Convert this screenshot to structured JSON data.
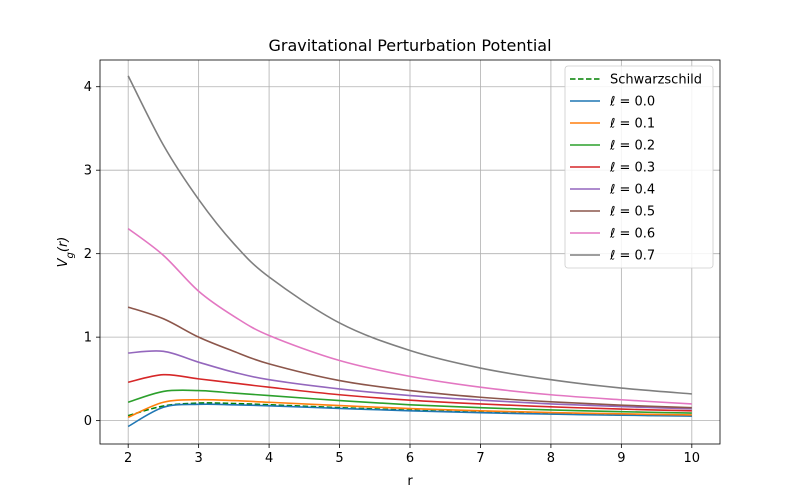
{
  "chart_data": {
    "type": "line",
    "title": "Gravitational Perturbation Potential",
    "xlabel": "r",
    "ylabel": "V_g(r)",
    "xlim": [
      1.6,
      10.4
    ],
    "ylim": [
      -0.28,
      4.32
    ],
    "xticks": [
      2,
      3,
      4,
      5,
      6,
      7,
      8,
      9,
      10
    ],
    "yticks": [
      0,
      1,
      2,
      3,
      4
    ],
    "grid": true,
    "legend_position": "top-right",
    "x": [
      2,
      2.5,
      3,
      3.5,
      4,
      5,
      6,
      7,
      8,
      9,
      10
    ],
    "series": [
      {
        "name": "Schwarzschild",
        "color": "#008000",
        "style": "dashed",
        "values": [
          0.06,
          0.175,
          0.21,
          0.205,
          0.19,
          0.155,
          0.125,
          0.1,
          0.082,
          0.068,
          0.058
        ]
      },
      {
        "name": "ℓ = 0.0",
        "color": "#1f77b4",
        "style": "solid",
        "values": [
          -0.07,
          0.16,
          0.195,
          0.19,
          0.178,
          0.146,
          0.118,
          0.095,
          0.078,
          0.065,
          0.055
        ]
      },
      {
        "name": "ℓ = 0.1",
        "color": "#ff7f0e",
        "style": "solid",
        "values": [
          0.04,
          0.22,
          0.25,
          0.24,
          0.22,
          0.18,
          0.145,
          0.118,
          0.097,
          0.081,
          0.068
        ]
      },
      {
        "name": "ℓ = 0.2",
        "color": "#2ca02c",
        "style": "solid",
        "values": [
          0.22,
          0.35,
          0.36,
          0.33,
          0.3,
          0.24,
          0.19,
          0.155,
          0.128,
          0.107,
          0.09
        ]
      },
      {
        "name": "ℓ = 0.3",
        "color": "#d62728",
        "style": "solid",
        "values": [
          0.46,
          0.55,
          0.5,
          0.45,
          0.4,
          0.31,
          0.245,
          0.2,
          0.165,
          0.138,
          0.117
        ]
      },
      {
        "name": "ℓ = 0.4",
        "color": "#9467bd",
        "style": "solid",
        "values": [
          0.81,
          0.83,
          0.7,
          0.58,
          0.49,
          0.38,
          0.3,
          0.245,
          0.2,
          0.168,
          0.142
        ]
      },
      {
        "name": "ℓ = 0.5",
        "color": "#8c564b",
        "style": "solid",
        "values": [
          1.36,
          1.22,
          1.0,
          0.83,
          0.68,
          0.48,
          0.36,
          0.28,
          0.225,
          0.185,
          0.155
        ]
      },
      {
        "name": "ℓ = 0.6",
        "color": "#e377c2",
        "style": "solid",
        "values": [
          2.3,
          1.98,
          1.55,
          1.25,
          1.02,
          0.72,
          0.53,
          0.4,
          0.31,
          0.25,
          0.2
        ]
      },
      {
        "name": "ℓ = 0.7",
        "color": "#7f7f7f",
        "style": "solid",
        "values": [
          4.13,
          3.3,
          2.65,
          2.12,
          1.72,
          1.17,
          0.84,
          0.63,
          0.49,
          0.39,
          0.32
        ]
      }
    ]
  }
}
